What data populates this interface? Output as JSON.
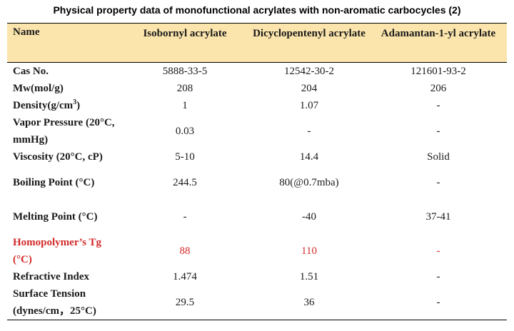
{
  "title": "Physical property data of monofunctional acrylates with non-aromatic carbocycles (2)",
  "header": {
    "name": "Name",
    "col1": "Isobornyl acrylate",
    "col2": "Dicyclopentenyl acrylate",
    "col3": "Adamantan-1-yl acrylate"
  },
  "rows": [
    {
      "label": "Cas No.",
      "v1": "5888-33-5",
      "v2": "12542-30-2",
      "v3": "121601-93-2"
    },
    {
      "label": "Mw(mol/g)",
      "v1": "208",
      "v2": "204",
      "v3": "206"
    },
    {
      "label": "Density(g/cm",
      "label_sup": "3",
      "label_after": ")",
      "v1": "1",
      "v2": "1.07",
      "v3": "-"
    },
    {
      "label": "Vapor Pressure (20°C, mmHg)",
      "v1": "0.03",
      "v2": "-",
      "v3": "-"
    },
    {
      "label": "Viscosity (20°C, cP)",
      "v1": "5-10",
      "v2": "14.4",
      "v3": "Solid"
    },
    {
      "label": "Boiling Point (°C)",
      "v1": "244.5",
      "v2": "80(@0.7mba)",
      "v3": "-"
    },
    {
      "label": "Melting Point (°C)",
      "v1": "-",
      "v2": "-40",
      "v3": "37-41"
    },
    {
      "label": "Homopolymer’s Tg (°C)",
      "v1": "88",
      "v2": "110",
      "v3": "-"
    },
    {
      "label": "Refractive Index",
      "v1": "1.474",
      "v2": "1.51",
      "v3": "-"
    },
    {
      "label": "Surface Tension (dynes/cm，25°C)",
      "v1": "29.5",
      "v2": "36",
      "v3": "-"
    }
  ],
  "colors": {
    "header_bg": "#fbe5ad",
    "highlight": "#d32a2a",
    "text": "#1a1a1a"
  }
}
